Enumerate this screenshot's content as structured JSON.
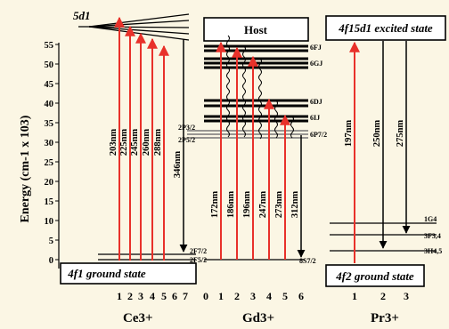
{
  "axis": {
    "ylabel": "Energy (cm-1 x 103)",
    "yticks": [
      "55",
      "50",
      "45",
      "40",
      "35",
      "30",
      "25",
      "20",
      "15",
      "10",
      "5",
      "0"
    ]
  },
  "ce": {
    "ion": "Ce3+",
    "top_label": "5d1",
    "ground_box": "4f1 ground state",
    "ground_levels": [
      "2F7/2",
      "2F5/2"
    ],
    "columns": [
      "1",
      "2",
      "3",
      "4",
      "5",
      "6",
      "7"
    ],
    "wavelengths": [
      "203nm",
      "225nm",
      "245nm",
      "260nm",
      "288nm",
      "346nm"
    ]
  },
  "gd": {
    "ion": "Gd3+",
    "host_box": "Host",
    "levels": [
      "6FJ",
      "6GJ",
      "6DJ",
      "6IJ",
      "6P7/2",
      "8S7/2"
    ],
    "ce_side_levels": [
      "2P3/2",
      "2P5/2"
    ],
    "columns": [
      "0",
      "1",
      "2",
      "3",
      "4",
      "5",
      "6"
    ],
    "wavelengths": [
      "172nm",
      "186nm",
      "196nm",
      "247nm",
      "273nm",
      "312nm"
    ]
  },
  "pr": {
    "ion": "Pr3+",
    "excited_box": "4f15d1 excited state",
    "ground_box": "4f2 ground state",
    "levels": [
      "1G4",
      "3F3,4",
      "3H4,5"
    ],
    "columns": [
      "1",
      "2",
      "3"
    ],
    "wavelengths": [
      "197nm",
      "250nm",
      "275nm"
    ]
  },
  "colors": {
    "excitation": "#e8312a",
    "emission": "#000000",
    "background": "#fbf6e4"
  }
}
